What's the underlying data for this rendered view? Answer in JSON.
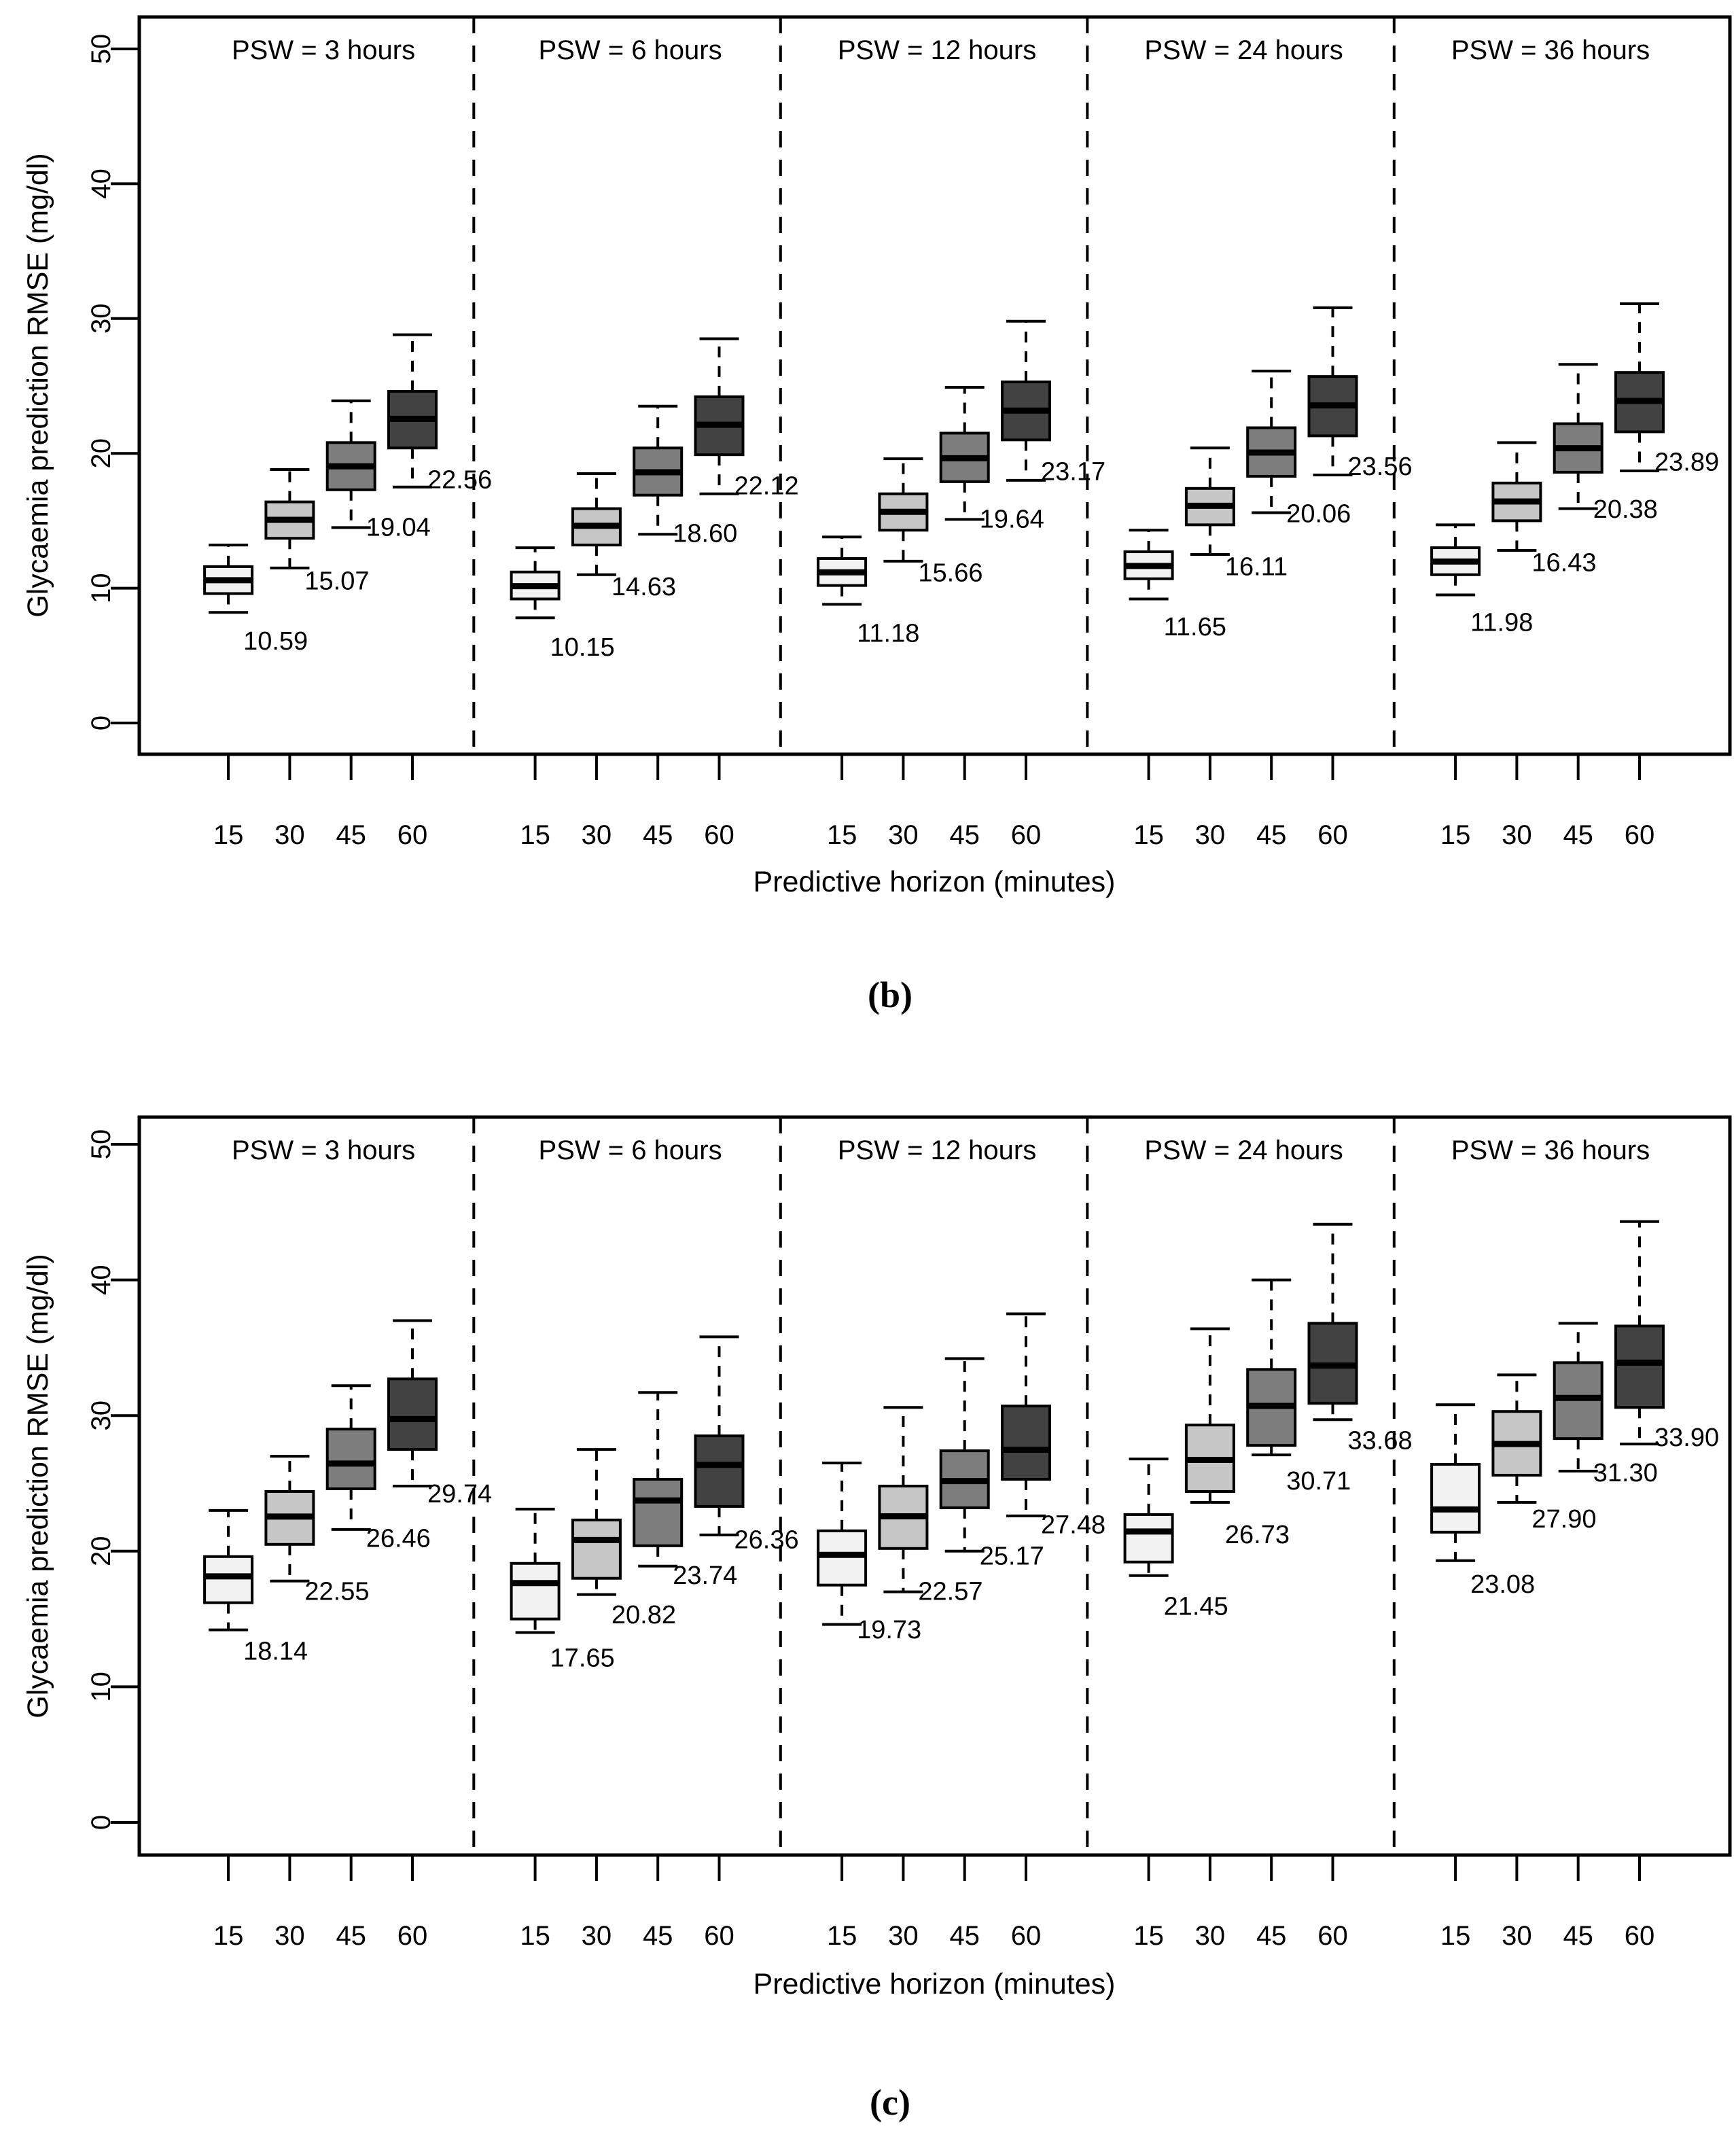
{
  "chart_data": [
    {
      "id": "b",
      "type": "box",
      "caption": "(b)",
      "xlabel": "Predictive horizon (minutes)",
      "ylabel": "Glycaemia prediction RMSE (mg/dl)",
      "ylim": [
        0,
        50
      ],
      "yticks": [
        0,
        10,
        20,
        30,
        40,
        50
      ],
      "x_categories": [
        "15",
        "30",
        "45",
        "60"
      ],
      "grid": false,
      "legend": "none",
      "box_fill_colors": [
        "#f2f2f2",
        "#c6c6c6",
        "#7d7d7d",
        "#424242"
      ],
      "panels": [
        {
          "title": "PSW = 3 hours",
          "boxes": [
            {
              "x": "15",
              "label": "10.59",
              "whisker_low": 8.2,
              "q1": 9.6,
              "median": 10.59,
              "q3": 11.6,
              "whisker_high": 13.2
            },
            {
              "x": "30",
              "label": "15.07",
              "whisker_low": 11.5,
              "q1": 13.7,
              "median": 15.07,
              "q3": 16.4,
              "whisker_high": 18.8
            },
            {
              "x": "45",
              "label": "19.04",
              "whisker_low": 14.5,
              "q1": 17.3,
              "median": 19.04,
              "q3": 20.8,
              "whisker_high": 23.9
            },
            {
              "x": "60",
              "label": "22.56",
              "whisker_low": 17.5,
              "q1": 20.4,
              "median": 22.56,
              "q3": 24.6,
              "whisker_high": 28.8
            }
          ]
        },
        {
          "title": "PSW = 6 hours",
          "boxes": [
            {
              "x": "15",
              "label": "10.15",
              "whisker_low": 7.8,
              "q1": 9.2,
              "median": 10.15,
              "q3": 11.2,
              "whisker_high": 13.0
            },
            {
              "x": "30",
              "label": "14.63",
              "whisker_low": 11.0,
              "q1": 13.2,
              "median": 14.63,
              "q3": 15.9,
              "whisker_high": 18.5
            },
            {
              "x": "45",
              "label": "18.60",
              "whisker_low": 14.0,
              "q1": 16.9,
              "median": 18.6,
              "q3": 20.4,
              "whisker_high": 23.5
            },
            {
              "x": "60",
              "label": "22.12",
              "whisker_low": 17.0,
              "q1": 19.9,
              "median": 22.12,
              "q3": 24.2,
              "whisker_high": 28.5
            }
          ]
        },
        {
          "title": "PSW = 12 hours",
          "boxes": [
            {
              "x": "15",
              "label": "11.18",
              "whisker_low": 8.8,
              "q1": 10.2,
              "median": 11.18,
              "q3": 12.2,
              "whisker_high": 13.8
            },
            {
              "x": "30",
              "label": "15.66",
              "whisker_low": 12.0,
              "q1": 14.3,
              "median": 15.66,
              "q3": 17.0,
              "whisker_high": 19.6
            },
            {
              "x": "45",
              "label": "19.64",
              "whisker_low": 15.1,
              "q1": 17.9,
              "median": 19.64,
              "q3": 21.5,
              "whisker_high": 24.9
            },
            {
              "x": "60",
              "label": "23.17",
              "whisker_low": 18.0,
              "q1": 21.0,
              "median": 23.17,
              "q3": 25.3,
              "whisker_high": 29.8
            }
          ]
        },
        {
          "title": "PSW = 24 hours",
          "boxes": [
            {
              "x": "15",
              "label": "11.65",
              "whisker_low": 9.2,
              "q1": 10.7,
              "median": 11.65,
              "q3": 12.7,
              "whisker_high": 14.3
            },
            {
              "x": "30",
              "label": "16.11",
              "whisker_low": 12.5,
              "q1": 14.7,
              "median": 16.11,
              "q3": 17.4,
              "whisker_high": 20.4
            },
            {
              "x": "45",
              "label": "20.06",
              "whisker_low": 15.6,
              "q1": 18.3,
              "median": 20.06,
              "q3": 21.9,
              "whisker_high": 26.1
            },
            {
              "x": "60",
              "label": "23.56",
              "whisker_low": 18.4,
              "q1": 21.3,
              "median": 23.56,
              "q3": 25.7,
              "whisker_high": 30.8
            }
          ]
        },
        {
          "title": "PSW = 36 hours",
          "boxes": [
            {
              "x": "15",
              "label": "11.98",
              "whisker_low": 9.5,
              "q1": 11.0,
              "median": 11.98,
              "q3": 13.0,
              "whisker_high": 14.7
            },
            {
              "x": "30",
              "label": "16.43",
              "whisker_low": 12.8,
              "q1": 15.0,
              "median": 16.43,
              "q3": 17.8,
              "whisker_high": 20.8
            },
            {
              "x": "45",
              "label": "20.38",
              "whisker_low": 15.9,
              "q1": 18.6,
              "median": 20.38,
              "q3": 22.2,
              "whisker_high": 26.6
            },
            {
              "x": "60",
              "label": "23.89",
              "whisker_low": 18.7,
              "q1": 21.6,
              "median": 23.89,
              "q3": 26.0,
              "whisker_high": 31.1
            }
          ]
        }
      ]
    },
    {
      "id": "c",
      "type": "box",
      "caption": "(c)",
      "xlabel": "Predictive horizon (minutes)",
      "ylabel": "Glycaemia prediction RMSE (mg/dl)",
      "ylim": [
        0,
        50
      ],
      "yticks": [
        0,
        10,
        20,
        30,
        40,
        50
      ],
      "x_categories": [
        "15",
        "30",
        "45",
        "60"
      ],
      "grid": false,
      "legend": "none",
      "box_fill_colors": [
        "#f2f2f2",
        "#c6c6c6",
        "#7d7d7d",
        "#424242"
      ],
      "panels": [
        {
          "title": "PSW = 3 hours",
          "boxes": [
            {
              "x": "15",
              "label": "18.14",
              "whisker_low": 14.2,
              "q1": 16.2,
              "median": 18.14,
              "q3": 19.6,
              "whisker_high": 23.0
            },
            {
              "x": "30",
              "label": "22.55",
              "whisker_low": 17.8,
              "q1": 20.5,
              "median": 22.55,
              "q3": 24.4,
              "whisker_high": 27.0
            },
            {
              "x": "45",
              "label": "26.46",
              "whisker_low": 21.6,
              "q1": 24.6,
              "median": 26.46,
              "q3": 29.0,
              "whisker_high": 32.2
            },
            {
              "x": "60",
              "label": "29.74",
              "whisker_low": 24.8,
              "q1": 27.5,
              "median": 29.74,
              "q3": 32.7,
              "whisker_high": 37.0
            }
          ]
        },
        {
          "title": "PSW = 6 hours",
          "boxes": [
            {
              "x": "15",
              "label": "17.65",
              "whisker_low": 14.0,
              "q1": 15.0,
              "median": 17.65,
              "q3": 19.1,
              "whisker_high": 23.1
            },
            {
              "x": "30",
              "label": "20.82",
              "whisker_low": 16.8,
              "q1": 18.0,
              "median": 20.82,
              "q3": 22.3,
              "whisker_high": 27.5
            },
            {
              "x": "45",
              "label": "23.74",
              "whisker_low": 18.9,
              "q1": 20.4,
              "median": 23.74,
              "q3": 25.3,
              "whisker_high": 31.7
            },
            {
              "x": "60",
              "label": "26.36",
              "whisker_low": 21.2,
              "q1": 23.3,
              "median": 26.36,
              "q3": 28.5,
              "whisker_high": 35.8
            }
          ]
        },
        {
          "title": "PSW = 12 hours",
          "boxes": [
            {
              "x": "15",
              "label": "19.73",
              "whisker_low": 14.6,
              "q1": 17.5,
              "median": 19.73,
              "q3": 21.5,
              "whisker_high": 26.5
            },
            {
              "x": "30",
              "label": "22.57",
              "whisker_low": 17.0,
              "q1": 20.2,
              "median": 22.57,
              "q3": 24.8,
              "whisker_high": 30.6
            },
            {
              "x": "45",
              "label": "25.17",
              "whisker_low": 20.0,
              "q1": 23.2,
              "median": 25.17,
              "q3": 27.4,
              "whisker_high": 34.2
            },
            {
              "x": "60",
              "label": "27.48",
              "whisker_low": 22.6,
              "q1": 25.3,
              "median": 27.48,
              "q3": 30.7,
              "whisker_high": 37.5
            }
          ]
        },
        {
          "title": "PSW = 24 hours",
          "boxes": [
            {
              "x": "15",
              "label": "21.45",
              "whisker_low": 18.2,
              "q1": 19.2,
              "median": 21.45,
              "q3": 22.7,
              "whisker_high": 26.8
            },
            {
              "x": "30",
              "label": "26.73",
              "whisker_low": 23.6,
              "q1": 24.4,
              "median": 26.73,
              "q3": 29.3,
              "whisker_high": 36.4
            },
            {
              "x": "45",
              "label": "30.71",
              "whisker_low": 27.1,
              "q1": 27.8,
              "median": 30.71,
              "q3": 33.4,
              "whisker_high": 40.0
            },
            {
              "x": "60",
              "label": "33.68",
              "whisker_low": 29.7,
              "q1": 30.9,
              "median": 33.68,
              "q3": 36.8,
              "whisker_high": 44.1
            }
          ]
        },
        {
          "title": "PSW = 36 hours",
          "boxes": [
            {
              "x": "15",
              "label": "23.08",
              "whisker_low": 19.3,
              "q1": 21.4,
              "median": 23.08,
              "q3": 26.4,
              "whisker_high": 30.8
            },
            {
              "x": "30",
              "label": "27.90",
              "whisker_low": 23.6,
              "q1": 25.6,
              "median": 27.9,
              "q3": 30.3,
              "whisker_high": 33.0
            },
            {
              "x": "45",
              "label": "31.30",
              "whisker_low": 25.9,
              "q1": 28.3,
              "median": 31.3,
              "q3": 33.9,
              "whisker_high": 36.8
            },
            {
              "x": "60",
              "label": "33.90",
              "whisker_low": 27.9,
              "q1": 30.6,
              "median": 33.9,
              "q3": 36.6,
              "whisker_high": 44.3
            }
          ]
        }
      ]
    }
  ],
  "styles": {
    "frame_color": "#000000",
    "text_color": "#000000",
    "background": "#ffffff"
  }
}
